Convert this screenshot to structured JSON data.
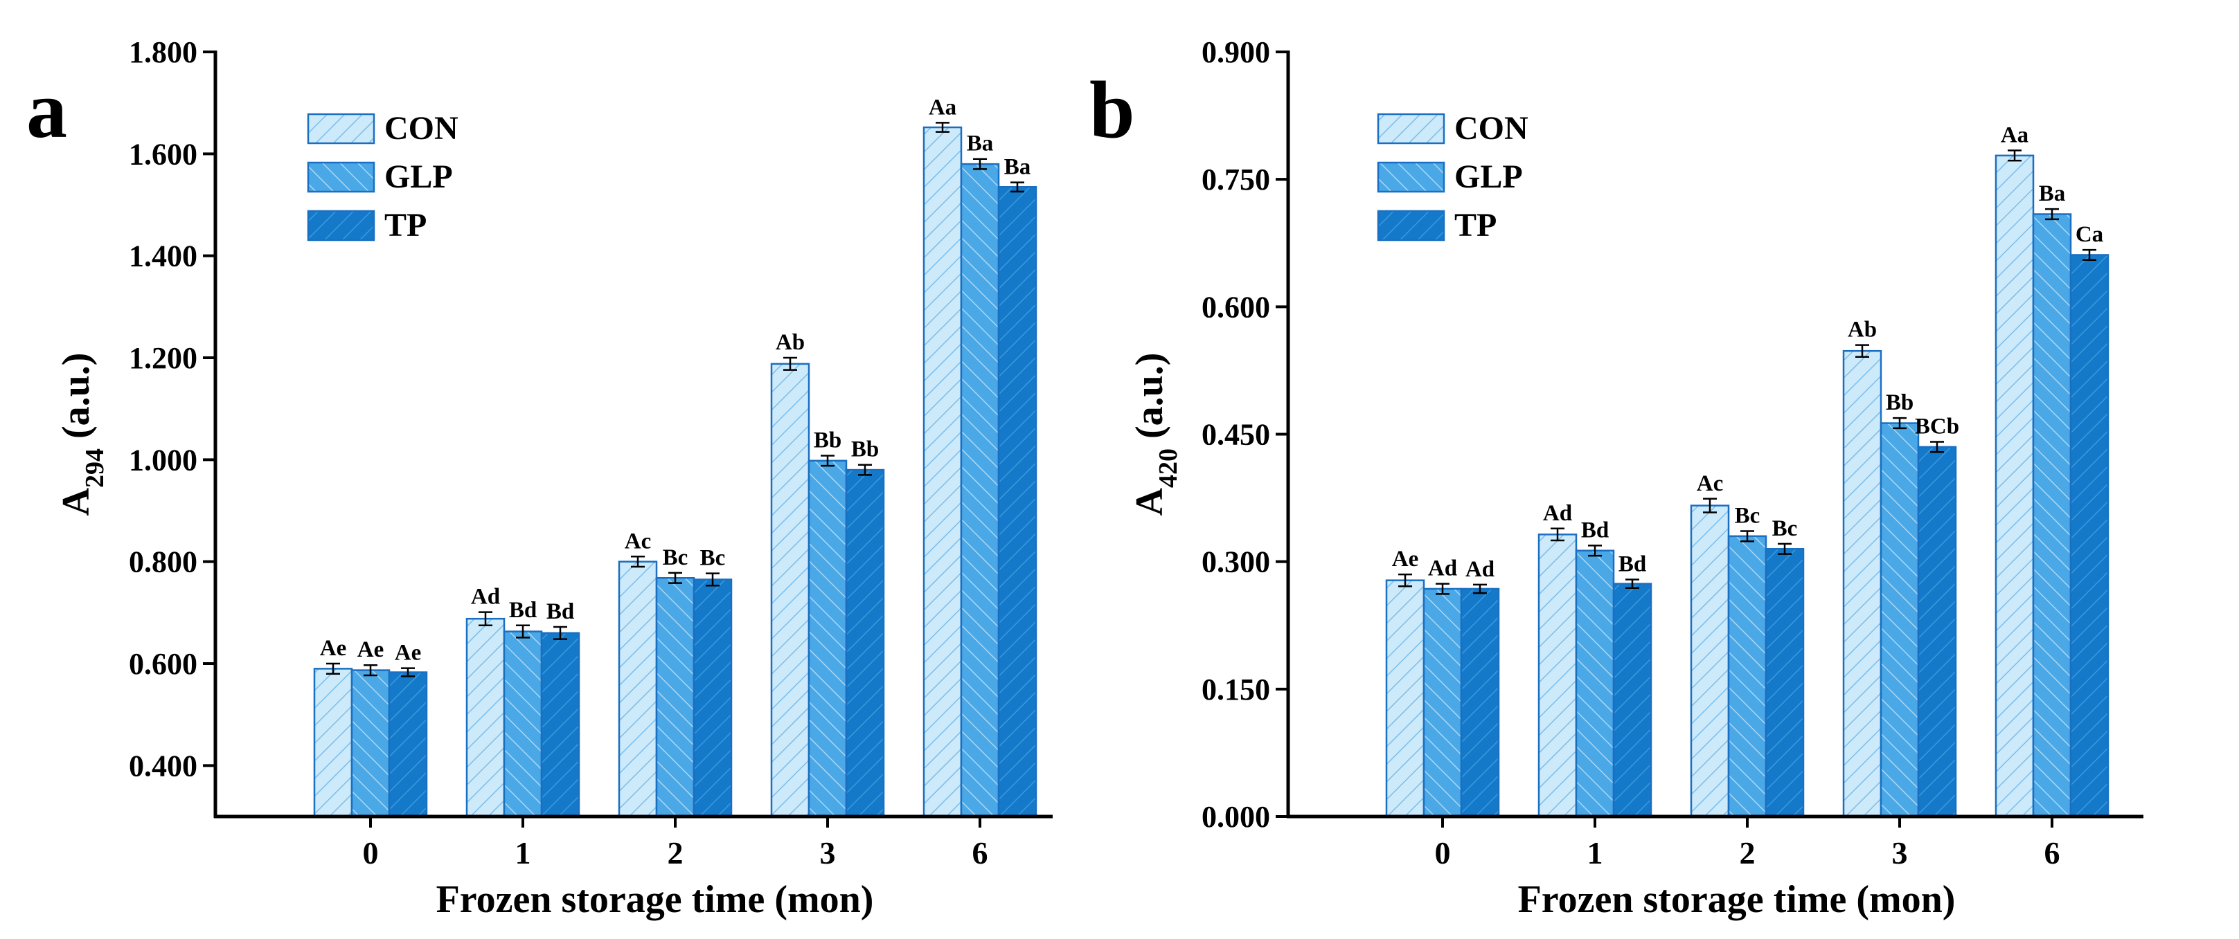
{
  "chart_data": [
    {
      "type": "bar",
      "panel_label": "a",
      "categories": [
        "0",
        "1",
        "2",
        "3",
        "6"
      ],
      "xlabel": "Frozen storage time (mon)",
      "ylabel_main": "A",
      "ylabel_sub": "294",
      "ylabel_unit": " (a.u.)",
      "ylim": [
        0.3,
        1.8
      ],
      "yticks": [
        "0.400",
        "0.600",
        "0.800",
        "1.000",
        "1.200",
        "1.400",
        "1.600",
        "1.800"
      ],
      "ytick_values": [
        0.4,
        0.6,
        0.8,
        1.0,
        1.2,
        1.4,
        1.6,
        1.8
      ],
      "legend_position": "top-left",
      "grid": false,
      "series": [
        {
          "name": "CON",
          "values": [
            0.59,
            0.688,
            0.8,
            1.188,
            1.652
          ],
          "errors": [
            0.01,
            0.013,
            0.01,
            0.012,
            0.009
          ],
          "labels": [
            "Ae",
            "Ad",
            "Ac",
            "Ab",
            "Aa"
          ]
        },
        {
          "name": "GLP",
          "values": [
            0.587,
            0.663,
            0.768,
            0.998,
            1.58
          ],
          "errors": [
            0.01,
            0.012,
            0.01,
            0.01,
            0.01
          ],
          "labels": [
            "Ae",
            "Bd",
            "Bc",
            "Bb",
            "Ba"
          ]
        },
        {
          "name": "TP",
          "values": [
            0.583,
            0.66,
            0.765,
            0.98,
            1.535
          ],
          "errors": [
            0.008,
            0.012,
            0.012,
            0.01,
            0.009
          ],
          "labels": [
            "Ae",
            "Bd",
            "Bc",
            "Bb",
            "Ba"
          ]
        }
      ]
    },
    {
      "type": "bar",
      "panel_label": "b",
      "categories": [
        "0",
        "1",
        "2",
        "3",
        "6"
      ],
      "xlabel": "Frozen storage time (mon)",
      "ylabel_main": "A",
      "ylabel_sub": "420",
      "ylabel_unit": " (a.u.)",
      "ylim": [
        0.0,
        0.9
      ],
      "yticks": [
        "0.000",
        "0.150",
        "0.300",
        "0.450",
        "0.600",
        "0.750",
        "0.900"
      ],
      "ytick_values": [
        0.0,
        0.15,
        0.3,
        0.45,
        0.6,
        0.75,
        0.9
      ],
      "legend_position": "top-left",
      "grid": false,
      "series": [
        {
          "name": "CON",
          "values": [
            0.278,
            0.332,
            0.366,
            0.548,
            0.778
          ],
          "errors": [
            0.007,
            0.007,
            0.008,
            0.007,
            0.006
          ],
          "labels": [
            "Ae",
            "Ad",
            "Ac",
            "Ab",
            "Aa"
          ]
        },
        {
          "name": "GLP",
          "values": [
            0.268,
            0.313,
            0.33,
            0.463,
            0.709
          ],
          "errors": [
            0.006,
            0.006,
            0.006,
            0.006,
            0.006
          ],
          "labels": [
            "Ad",
            "Bd",
            "Bc",
            "Bb",
            "Ba"
          ]
        },
        {
          "name": "TP",
          "values": [
            0.268,
            0.274,
            0.315,
            0.435,
            0.661
          ],
          "errors": [
            0.005,
            0.005,
            0.006,
            0.006,
            0.006
          ],
          "labels": [
            "Ad",
            "Bd",
            "Bc",
            "BCb",
            "Ca"
          ]
        }
      ]
    }
  ],
  "colors": {
    "con_fill": "#cdeafa",
    "glp_fill": "#4aa8e6",
    "tp_fill": "#1479c9",
    "outline": "#1b6fc2"
  }
}
